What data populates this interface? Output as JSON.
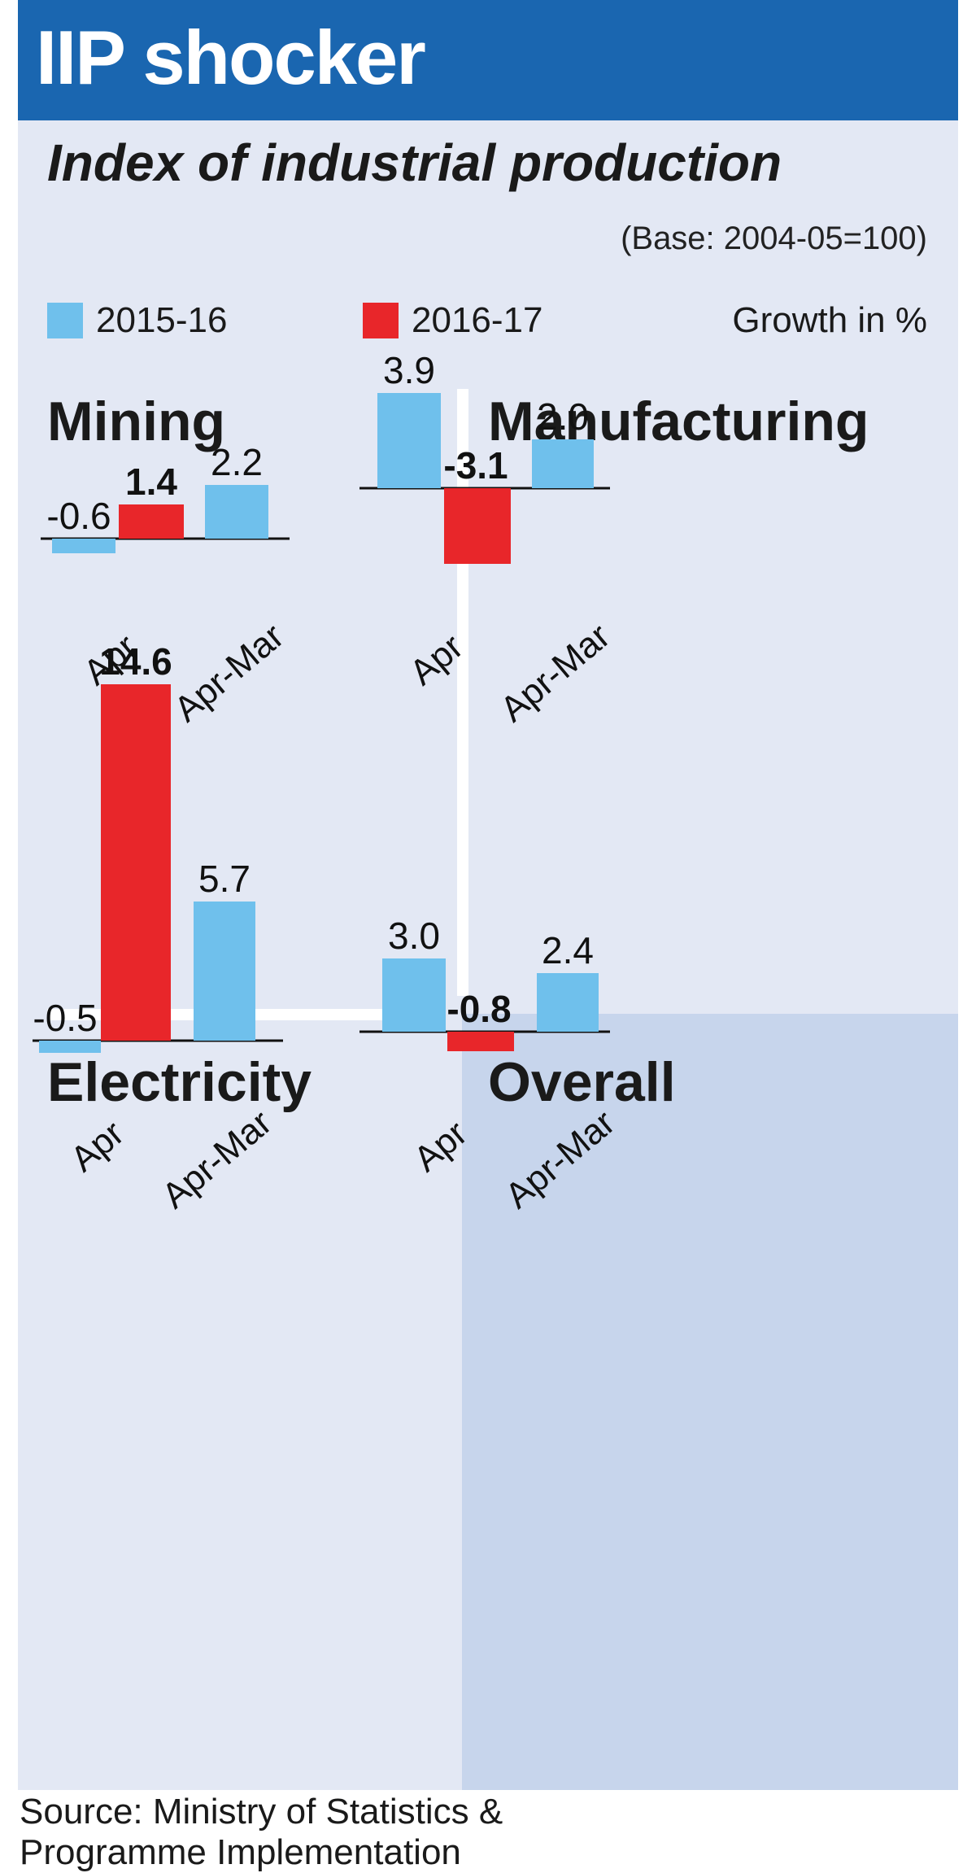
{
  "title": "IIP shocker",
  "subtitle": "Index of industrial production",
  "base_note": "(Base: 2004-05=100)",
  "growth_note": "Growth in %",
  "source_line1": "Source: Ministry of Statistics &",
  "source_line2": "Programme Implementation",
  "colors": {
    "banner": "#1a66b0",
    "background": "#e3e8f4",
    "overall_background": "#c7d5ec",
    "series_2015_16": "#6fc0ec",
    "series_2016_17": "#e8262a"
  },
  "legend": [
    {
      "name": "2015-16",
      "color": "#6fc0ec"
    },
    {
      "name": "2016-17",
      "color": "#e8262a"
    }
  ],
  "chart_data": [
    {
      "type": "bar",
      "title": "Mining",
      "categories": [
        "Apr",
        "Apr-Mar"
      ],
      "series": [
        {
          "name": "2015-16",
          "values": [
            -0.6,
            2.2
          ]
        },
        {
          "name": "2016-17",
          "values": [
            1.4,
            null
          ]
        }
      ],
      "value_labels": [
        [
          "-0.6",
          "2.2"
        ],
        [
          "1.4",
          null
        ]
      ],
      "unit": "Growth in %"
    },
    {
      "type": "bar",
      "title": "Manufacturing",
      "categories": [
        "Apr",
        "Apr-Mar"
      ],
      "series": [
        {
          "name": "2015-16",
          "values": [
            3.9,
            2.0
          ]
        },
        {
          "name": "2016-17",
          "values": [
            -3.1,
            null
          ]
        }
      ],
      "value_labels": [
        [
          "3.9",
          "2.0"
        ],
        [
          "-3.1",
          null
        ]
      ],
      "unit": "Growth in %"
    },
    {
      "type": "bar",
      "title": "Electricity",
      "categories": [
        "Apr",
        "Apr-Mar"
      ],
      "series": [
        {
          "name": "2015-16",
          "values": [
            -0.5,
            5.7
          ]
        },
        {
          "name": "2016-17",
          "values": [
            14.6,
            null
          ]
        }
      ],
      "value_labels": [
        [
          "-0.5",
          "5.7"
        ],
        [
          "14.6",
          null
        ]
      ],
      "unit": "Growth in %"
    },
    {
      "type": "bar",
      "title": "Overall",
      "categories": [
        "Apr",
        "Apr-Mar"
      ],
      "series": [
        {
          "name": "2015-16",
          "values": [
            3.0,
            2.4
          ]
        },
        {
          "name": "2016-17",
          "values": [
            -0.8,
            null
          ]
        }
      ],
      "value_labels": [
        [
          "3.0",
          "2.4"
        ],
        [
          "-0.8",
          null
        ]
      ],
      "unit": "Growth in %"
    }
  ]
}
